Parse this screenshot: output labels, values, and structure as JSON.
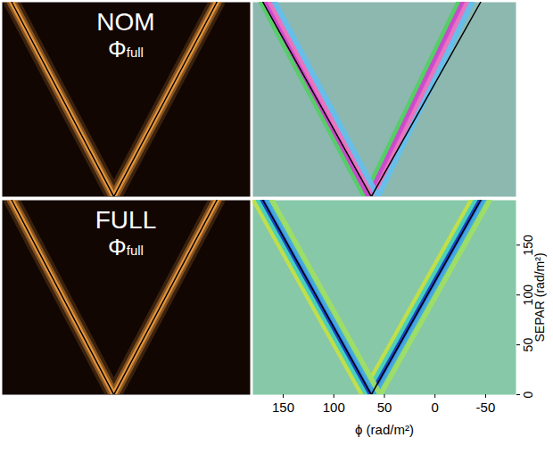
{
  "chart_data": [
    {
      "type": "heatmap",
      "title": "NOM",
      "subtitle": "Φfull",
      "color": "#120602",
      "xlim": [
        180,
        -80
      ],
      "ylim": [
        0,
        195
      ],
      "tick_labels": false,
      "lines": [
        {
          "x": [
            170,
            63,
            -45
          ],
          "y": [
            195,
            0,
            195
          ],
          "color": "#f5a040",
          "line_style": "glow"
        },
        {
          "x": [
            170,
            63,
            -45
          ],
          "y": [
            195,
            0,
            195
          ],
          "color": "#000000",
          "line_style": "solid"
        }
      ]
    },
    {
      "type": "heatmap",
      "color": "#8cb8b0",
      "xlim": [
        180,
        -80
      ],
      "ylim": [
        0,
        195
      ],
      "tick_labels": false,
      "lines": [
        {
          "x": [
            165,
            63,
            -30
          ],
          "y": [
            195,
            0,
            195
          ],
          "colors": [
            "#50d060",
            "#d040d0",
            "#f070c0",
            "#60c0f0"
          ],
          "line_style": "band"
        },
        {
          "x": [
            170,
            63,
            -45
          ],
          "y": [
            195,
            0,
            195
          ],
          "color": "#000000",
          "line_style": "solid"
        }
      ]
    },
    {
      "type": "heatmap",
      "title": "FULL",
      "subtitle": "Φfull",
      "color": "#120602",
      "xlim": [
        180,
        -80
      ],
      "ylim": [
        0,
        195
      ],
      "tick_labels": false,
      "lines": [
        {
          "x": [
            170,
            63,
            -45
          ],
          "y": [
            195,
            0,
            195
          ],
          "color": "#f5a040",
          "line_style": "glow"
        },
        {
          "x": [
            170,
            63,
            -45
          ],
          "y": [
            195,
            0,
            195
          ],
          "color": "#000000",
          "line_style": "solid"
        }
      ]
    },
    {
      "type": "heatmap",
      "color": "#86c8a8",
      "xlim": [
        180,
        -80
      ],
      "ylim": [
        0,
        195
      ],
      "xticks": [
        150,
        100,
        50,
        0,
        -50
      ],
      "yticks": [
        0,
        50,
        100,
        150
      ],
      "xlabel": "ϕ (rad/m²)",
      "ylabel": "SEPAR (rad/m²)",
      "lines": [
        {
          "x": [
            170,
            63,
            -45
          ],
          "y": [
            195,
            0,
            195
          ],
          "colors": [
            "#c8e040",
            "#40d0c0",
            "#1838c8",
            "#40a8e0",
            "#a0e060"
          ],
          "line_style": "band"
        },
        {
          "x": [
            170,
            63,
            -45
          ],
          "y": [
            195,
            0,
            195
          ],
          "color": "#000000",
          "line_style": "solid"
        }
      ]
    }
  ]
}
